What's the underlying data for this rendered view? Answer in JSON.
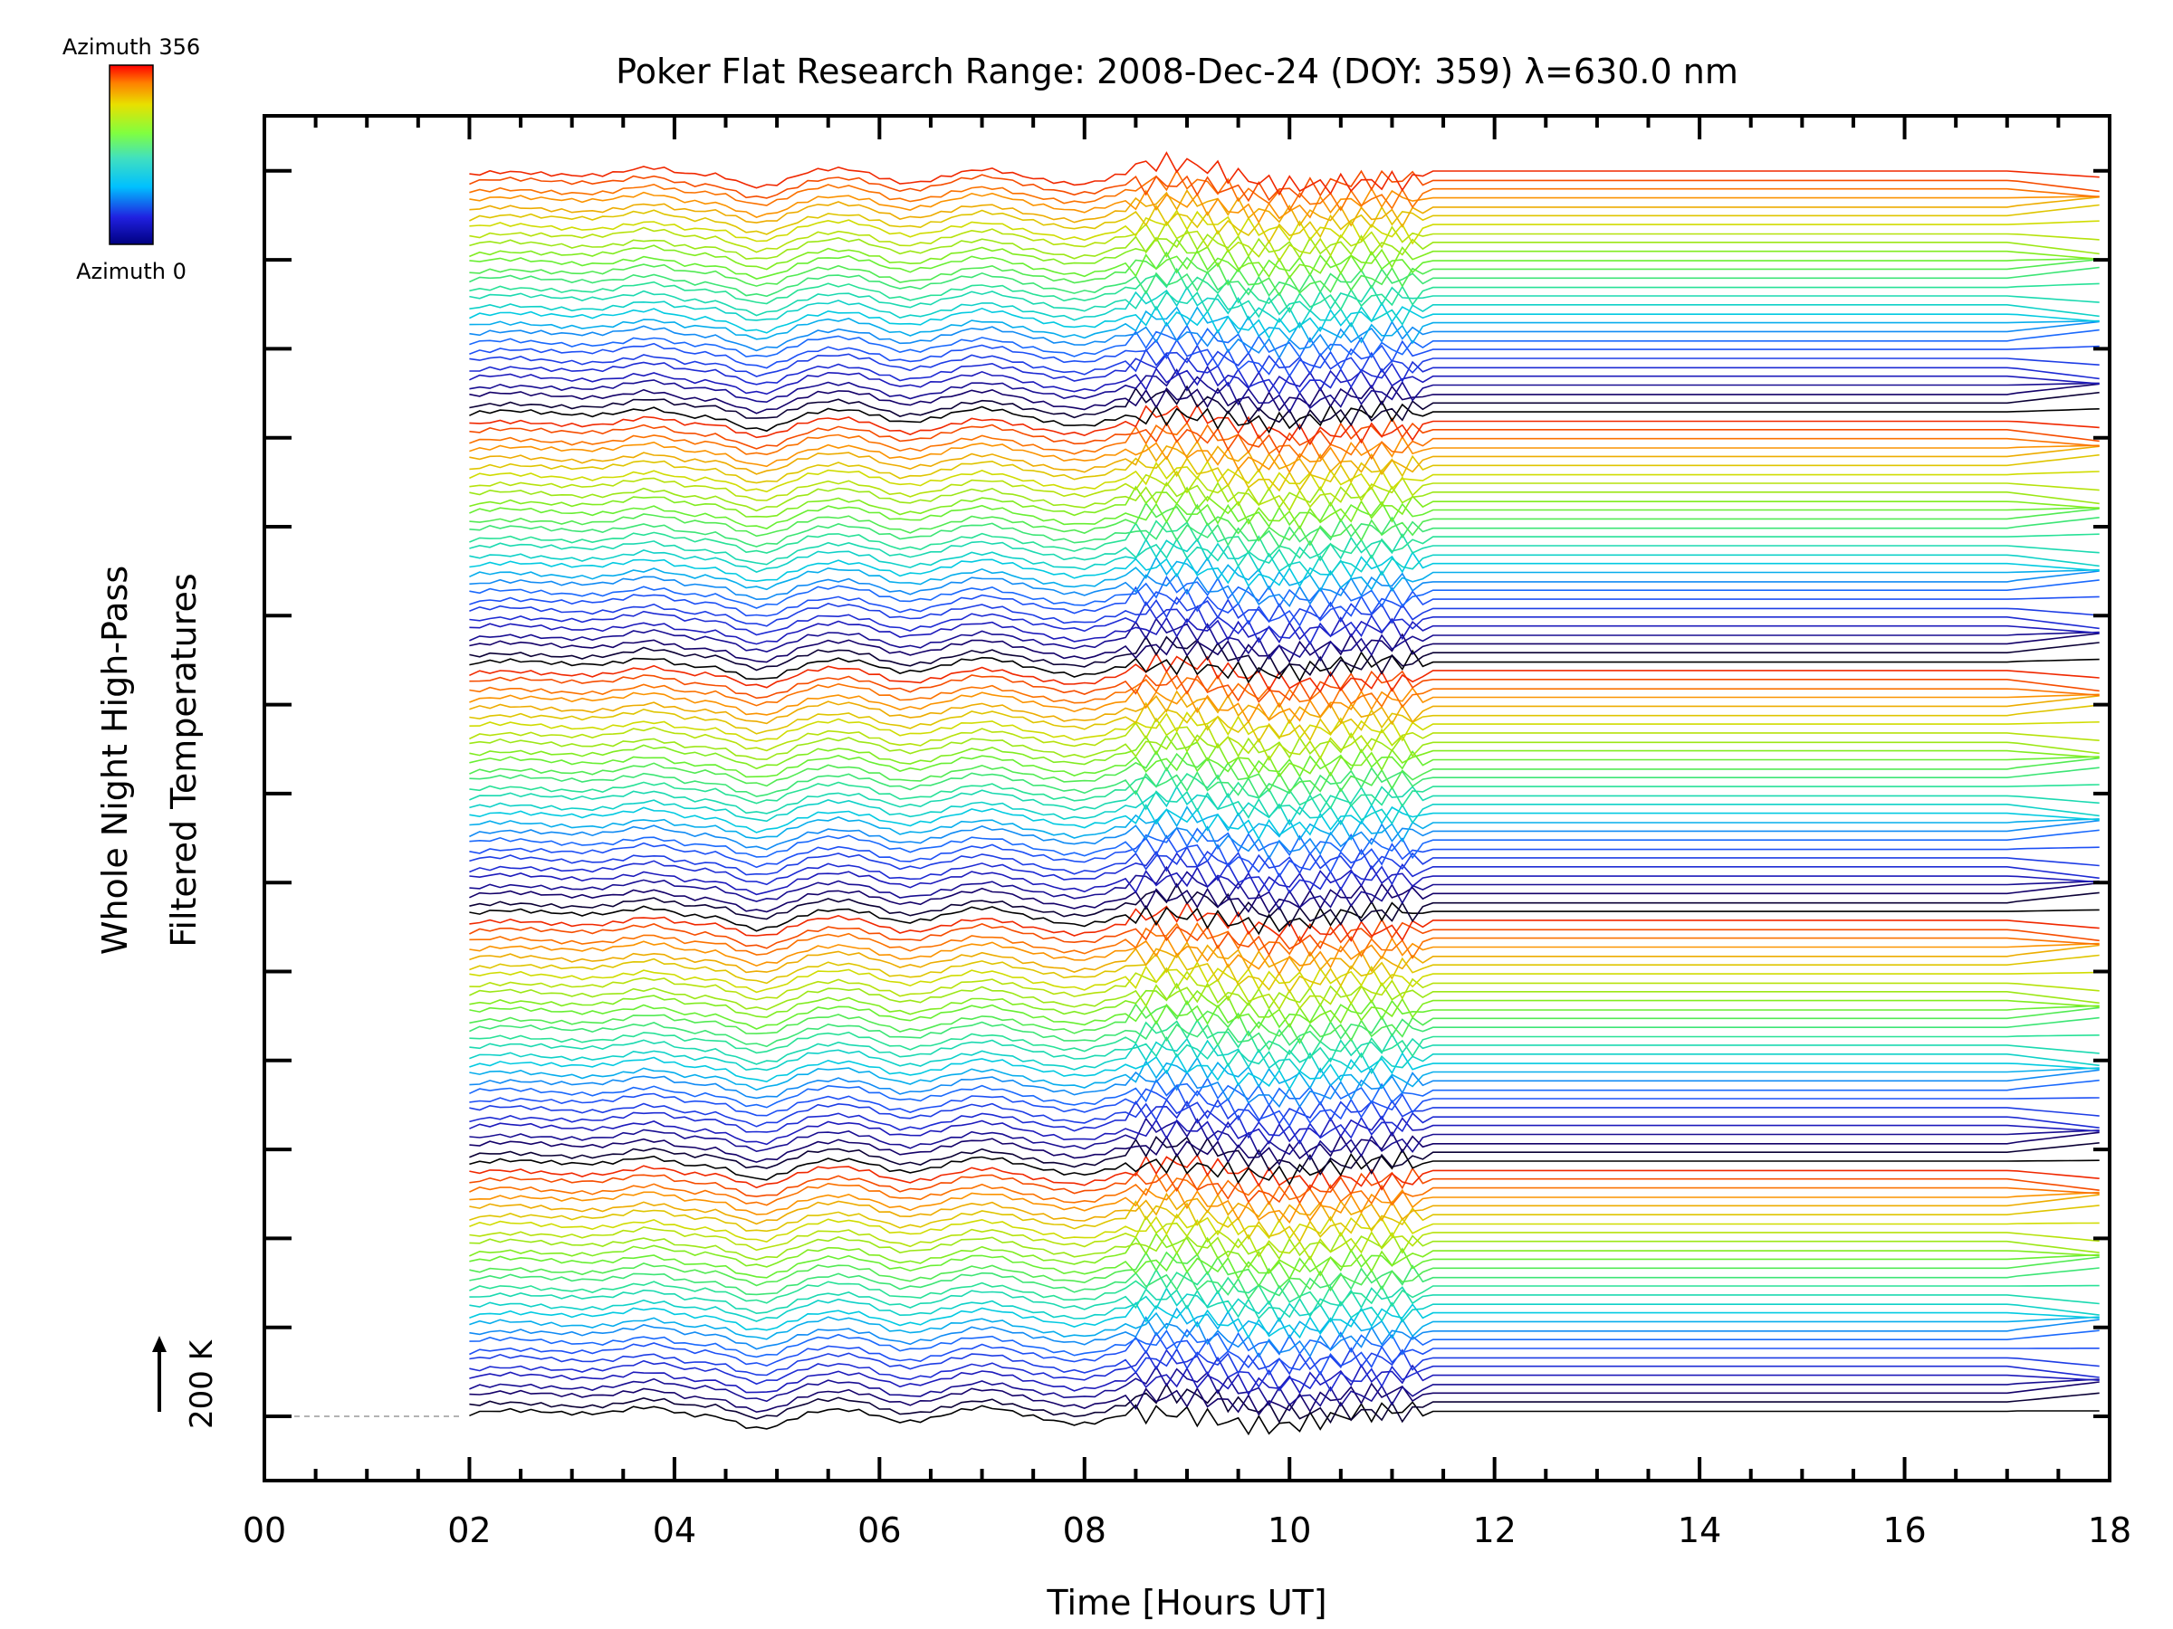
{
  "chart_data": {
    "type": "line",
    "title": "Poker Flat Research Range: 2008-Dec-24 (DOY: 359) λ=630.0 nm",
    "xlabel": "Time [Hours UT]",
    "ylabel_line1": "Whole Night High-Pass",
    "ylabel_line2": "Filtered Temperatures",
    "xlim": [
      0,
      18
    ],
    "xticks": [
      "00",
      "02",
      "04",
      "06",
      "08",
      "10",
      "12",
      "14",
      "16",
      "18"
    ],
    "x_start": 2.0,
    "x_end": 17.9,
    "series_count": 140,
    "series_offset_k": 100,
    "scale_bar_label": "200 K",
    "colorbar": {
      "top_label": "Azimuth 356",
      "bottom_label": "Azimuth 0",
      "min": 0,
      "max": 356,
      "colormap": "rainbow"
    },
    "legend_position": "top-left",
    "grid": false
  }
}
